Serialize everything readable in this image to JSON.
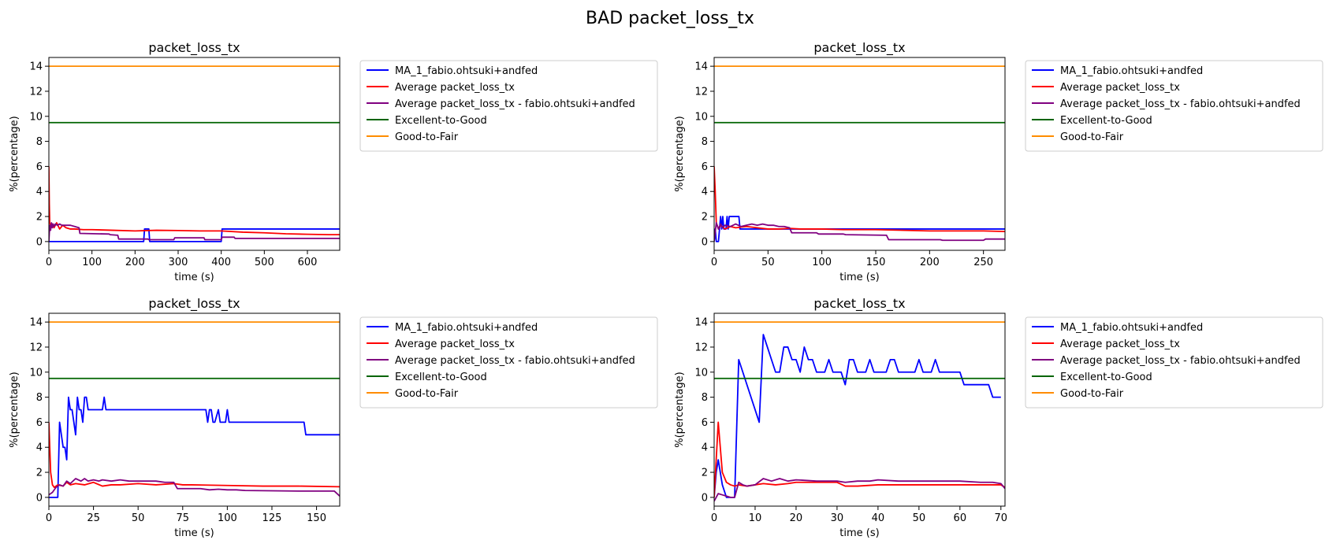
{
  "figure": {
    "title": "BAD packet_loss_tx"
  },
  "chart_data": [
    {
      "type": "line",
      "title": "packet_loss_tx",
      "xlabel": "time (s)",
      "ylabel": "%(percentage)",
      "xlim": [
        0,
        675
      ],
      "ylim": [
        -0.7,
        14.7
      ],
      "xticks": [
        0,
        100,
        200,
        300,
        400,
        500,
        600
      ],
      "yticks": [
        0,
        2,
        4,
        6,
        8,
        10,
        12,
        14
      ],
      "grid": false,
      "legend_position": "outside-right",
      "series": [
        {
          "name": "MA_1_fabio.ohtsuki+andfed",
          "color": "#0000ff",
          "x": [
            0,
            2,
            3,
            220,
            222,
            232,
            234,
            400,
            402,
            675
          ],
          "y": [
            0,
            0,
            0,
            0,
            1,
            1,
            0,
            0,
            1,
            1
          ]
        },
        {
          "name": "Average packet_loss_tx",
          "color": "#ff0000",
          "x": [
            0,
            1,
            2,
            5,
            8,
            12,
            18,
            25,
            32,
            40,
            50,
            60,
            80,
            100,
            150,
            200,
            250,
            300,
            350,
            400,
            450,
            500,
            550,
            600,
            650,
            675
          ],
          "y": [
            6,
            3,
            1.5,
            1.2,
            1.4,
            1.1,
            1.5,
            1.0,
            1.3,
            1.1,
            1.0,
            1.0,
            0.95,
            0.95,
            0.9,
            0.85,
            0.9,
            0.88,
            0.85,
            0.85,
            0.75,
            0.7,
            0.62,
            0.58,
            0.55,
            0.55
          ]
        },
        {
          "name": "Average packet_loss_tx - fabio.ohtsuki+andfed",
          "color": "#800080",
          "x": [
            0,
            2,
            4,
            6,
            8,
            10,
            12,
            15,
            20,
            25,
            30,
            40,
            50,
            60,
            70,
            72,
            140,
            142,
            160,
            162,
            230,
            232,
            290,
            292,
            360,
            362,
            400,
            402,
            430,
            432,
            675
          ],
          "y": [
            0,
            1.3,
            0.9,
            1.5,
            1.1,
            1.4,
            1.2,
            1.4,
            1.3,
            1.4,
            1.3,
            1.3,
            1.3,
            1.2,
            1.1,
            0.65,
            0.6,
            0.55,
            0.5,
            0.2,
            0.2,
            0.15,
            0.15,
            0.3,
            0.3,
            0.15,
            0.15,
            0.35,
            0.35,
            0.25,
            0.25
          ]
        },
        {
          "name": "Excellent-to-Good",
          "color": "#006400",
          "x": [
            0,
            675
          ],
          "y": [
            9.5,
            9.5
          ]
        },
        {
          "name": "Good-to-Fair",
          "color": "#ff8c00",
          "x": [
            0,
            675
          ],
          "y": [
            14,
            14
          ]
        }
      ]
    },
    {
      "type": "line",
      "title": "packet_loss_tx",
      "xlabel": "time (s)",
      "ylabel": "%(percentage)",
      "xlim": [
        0,
        270
      ],
      "ylim": [
        -0.7,
        14.7
      ],
      "xticks": [
        0,
        50,
        100,
        150,
        200,
        250
      ],
      "yticks": [
        0,
        2,
        4,
        6,
        8,
        10,
        12,
        14
      ],
      "grid": false,
      "legend_position": "outside-right",
      "series": [
        {
          "name": "MA_1_fabio.ohtsuki+andfed",
          "color": "#0000ff",
          "x": [
            0,
            1,
            2,
            4,
            5,
            6,
            7,
            8,
            9,
            11,
            12,
            13,
            14,
            23,
            24,
            25,
            270
          ],
          "y": [
            0,
            1,
            0,
            0,
            1,
            2,
            1,
            2,
            1,
            1,
            2,
            1,
            2,
            2,
            1,
            1,
            1
          ]
        },
        {
          "name": "Average packet_loss_tx",
          "color": "#ff0000",
          "x": [
            0,
            1,
            2,
            4,
            6,
            10,
            15,
            20,
            30,
            40,
            50,
            60,
            70,
            80,
            100,
            120,
            150,
            200,
            250,
            270
          ],
          "y": [
            6,
            4,
            1.5,
            1.0,
            1.3,
            1.0,
            1.2,
            1.1,
            1.2,
            1.1,
            1.0,
            1.0,
            1.05,
            1.0,
            1.0,
            0.95,
            0.95,
            0.85,
            0.85,
            0.8
          ]
        },
        {
          "name": "Average packet_loss_tx - fabio.ohtsuki+andfed",
          "color": "#800080",
          "x": [
            0,
            2,
            4,
            6,
            8,
            10,
            15,
            20,
            25,
            30,
            35,
            40,
            45,
            50,
            55,
            60,
            65,
            70,
            72,
            95,
            97,
            120,
            122,
            160,
            162,
            210,
            212,
            250,
            252,
            270
          ],
          "y": [
            0,
            1.5,
            1.0,
            1.4,
            1.1,
            1.3,
            1.2,
            1.4,
            1.2,
            1.3,
            1.4,
            1.3,
            1.4,
            1.3,
            1.3,
            1.2,
            1.2,
            1.1,
            0.7,
            0.7,
            0.6,
            0.6,
            0.55,
            0.5,
            0.15,
            0.15,
            0.1,
            0.1,
            0.2,
            0.2
          ]
        },
        {
          "name": "Excellent-to-Good",
          "color": "#006400",
          "x": [
            0,
            270
          ],
          "y": [
            9.5,
            9.5
          ]
        },
        {
          "name": "Good-to-Fair",
          "color": "#ff8c00",
          "x": [
            0,
            270
          ],
          "y": [
            14,
            14
          ]
        }
      ]
    },
    {
      "type": "line",
      "title": "packet_loss_tx",
      "xlabel": "time (s)",
      "ylabel": "%(percentage)",
      "xlim": [
        0,
        163
      ],
      "ylim": [
        -0.7,
        14.7
      ],
      "xticks": [
        0,
        25,
        50,
        75,
        100,
        125,
        150
      ],
      "yticks": [
        0,
        2,
        4,
        6,
        8,
        10,
        12,
        14
      ],
      "grid": false,
      "legend_position": "outside-right",
      "series": [
        {
          "name": "MA_1_fabio.ohtsuki+andfed",
          "color": "#0000ff",
          "x": [
            0,
            5,
            6,
            8,
            9,
            10,
            11,
            12,
            13,
            14,
            15,
            16,
            17,
            18,
            19,
            20,
            21,
            22,
            23,
            25,
            30,
            31,
            32,
            40,
            60,
            80,
            88,
            89,
            90,
            91,
            92,
            93,
            95,
            96,
            97,
            99,
            100,
            101,
            143,
            144,
            163
          ],
          "y": [
            0,
            0,
            6,
            4,
            4,
            3,
            8,
            7,
            7,
            6,
            5,
            8,
            7,
            7,
            6,
            8,
            8,
            7,
            7,
            7,
            7,
            8,
            7,
            7,
            7,
            7,
            7,
            6,
            7,
            7,
            6,
            6,
            7,
            6,
            6,
            6,
            7,
            6,
            6,
            5,
            5
          ]
        },
        {
          "name": "Average packet_loss_tx",
          "color": "#ff0000",
          "x": [
            0,
            1,
            2,
            3,
            5,
            8,
            10,
            12,
            15,
            20,
            25,
            30,
            35,
            40,
            50,
            60,
            70,
            75,
            80,
            100,
            120,
            140,
            163
          ],
          "y": [
            6,
            2,
            1.0,
            0.8,
            1.0,
            0.9,
            1.2,
            1.0,
            1.1,
            1.0,
            1.2,
            0.9,
            1.0,
            1.0,
            1.1,
            1.0,
            1.1,
            1.0,
            1.0,
            0.95,
            0.9,
            0.9,
            0.85
          ]
        },
        {
          "name": "Average packet_loss_tx - fabio.ohtsuki+andfed",
          "color": "#800080",
          "x": [
            0,
            2,
            4,
            6,
            8,
            10,
            12,
            15,
            18,
            20,
            22,
            25,
            28,
            30,
            35,
            40,
            45,
            50,
            55,
            60,
            65,
            70,
            72,
            85,
            90,
            95,
            100,
            105,
            110,
            140,
            160,
            163
          ],
          "y": [
            0.2,
            0.4,
            0.8,
            1.0,
            0.9,
            1.3,
            1.1,
            1.5,
            1.3,
            1.5,
            1.3,
            1.4,
            1.3,
            1.4,
            1.3,
            1.4,
            1.3,
            1.3,
            1.3,
            1.3,
            1.2,
            1.2,
            0.7,
            0.7,
            0.6,
            0.65,
            0.6,
            0.6,
            0.55,
            0.5,
            0.5,
            0.1
          ]
        },
        {
          "name": "Excellent-to-Good",
          "color": "#006400",
          "x": [
            0,
            163
          ],
          "y": [
            9.5,
            9.5
          ]
        },
        {
          "name": "Good-to-Fair",
          "color": "#ff8c00",
          "x": [
            0,
            163
          ],
          "y": [
            14,
            14
          ]
        }
      ]
    },
    {
      "type": "line",
      "title": "packet_loss_tx",
      "xlabel": "time (s)",
      "ylabel": "%(percentage)",
      "xlim": [
        0,
        71
      ],
      "ylim": [
        -0.7,
        14.7
      ],
      "xticks": [
        0,
        10,
        20,
        30,
        40,
        50,
        60,
        70
      ],
      "yticks": [
        0,
        2,
        4,
        6,
        8,
        10,
        12,
        14
      ],
      "grid": false,
      "legend_position": "outside-right",
      "series": [
        {
          "name": "MA_1_fabio.ohtsuki+andfed",
          "color": "#0000ff",
          "x": [
            0,
            0.5,
            1,
            1.5,
            2,
            3,
            4,
            5,
            6,
            11,
            12,
            13,
            14,
            15,
            16,
            17,
            18,
            19,
            20,
            21,
            22,
            23,
            24,
            25,
            26,
            27,
            28,
            29,
            30,
            31,
            32,
            33,
            34,
            35,
            36,
            37,
            38,
            39,
            40,
            41,
            42,
            43,
            44,
            45,
            46,
            47,
            48,
            49,
            50,
            51,
            52,
            53,
            54,
            55,
            56,
            57,
            58,
            59,
            60,
            61,
            62,
            63,
            64,
            65,
            66,
            67,
            68,
            69,
            70
          ],
          "y": [
            0,
            2,
            3,
            2,
            1,
            0,
            0,
            0,
            11,
            6,
            13,
            12,
            11,
            10,
            10,
            12,
            12,
            11,
            11,
            10,
            12,
            11,
            11,
            10,
            10,
            10,
            11,
            10,
            10,
            10,
            9,
            11,
            11,
            10,
            10,
            10,
            11,
            10,
            10,
            10,
            10,
            11,
            11,
            10,
            10,
            10,
            10,
            10,
            11,
            10,
            10,
            10,
            11,
            10,
            10,
            10,
            10,
            10,
            10,
            9,
            9,
            9,
            9,
            9,
            9,
            9,
            8,
            8,
            8
          ]
        },
        {
          "name": "Average packet_loss_tx",
          "color": "#ff0000",
          "x": [
            0,
            1,
            2,
            3,
            4,
            5,
            6,
            8,
            10,
            12,
            15,
            18,
            20,
            25,
            30,
            32,
            35,
            40,
            45,
            50,
            55,
            60,
            65,
            70,
            71
          ],
          "y": [
            0,
            6,
            2,
            1.2,
            1.0,
            0.9,
            1.0,
            0.9,
            1.0,
            1.1,
            1.0,
            1.1,
            1.2,
            1.2,
            1.2,
            0.9,
            0.9,
            1.0,
            1.0,
            1.0,
            1.0,
            1.0,
            1.0,
            1.0,
            0.8
          ]
        },
        {
          "name": "Average packet_loss_tx - fabio.ohtsuki+andfed",
          "color": "#800080",
          "x": [
            0,
            1,
            2,
            3,
            4,
            5,
            6,
            7,
            8,
            10,
            12,
            14,
            16,
            18,
            20,
            25,
            30,
            32,
            35,
            38,
            40,
            45,
            50,
            55,
            60,
            65,
            68,
            70,
            71
          ],
          "y": [
            -0.3,
            0.3,
            0.2,
            0.1,
            0.0,
            0.0,
            1.2,
            1.0,
            0.9,
            1.0,
            1.5,
            1.3,
            1.5,
            1.3,
            1.4,
            1.3,
            1.3,
            1.2,
            1.3,
            1.3,
            1.4,
            1.3,
            1.3,
            1.3,
            1.3,
            1.2,
            1.2,
            1.1,
            0.7
          ]
        },
        {
          "name": "Excellent-to-Good",
          "color": "#006400",
          "x": [
            0,
            71
          ],
          "y": [
            9.5,
            9.5
          ]
        },
        {
          "name": "Good-to-Fair",
          "color": "#ff8c00",
          "x": [
            0,
            71
          ],
          "y": [
            14,
            14
          ]
        }
      ]
    }
  ]
}
